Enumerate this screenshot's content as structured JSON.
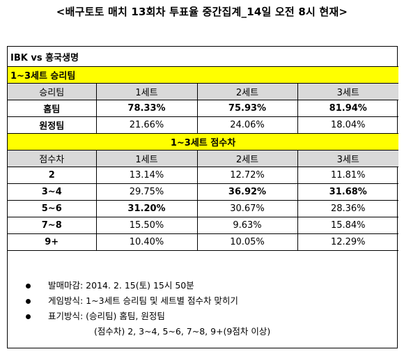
{
  "title": "<배구토토 매치 13회차 투표율 중간집계_14일 오전 8시 현재>",
  "matchup": "IBK vs  흥국생명",
  "win_section": {
    "title": "1~3세트 승리팀",
    "headers": [
      "승리팀",
      "1세트",
      "2세트",
      "3세트"
    ],
    "rows": [
      {
        "label": "홈팀",
        "values": [
          "78.33%",
          "75.93%",
          "81.94%"
        ],
        "bold": [
          true,
          true,
          true
        ]
      },
      {
        "label": "원정팀",
        "values": [
          "21.66%",
          "24.06%",
          "18.04%"
        ],
        "bold": [
          false,
          false,
          false
        ]
      }
    ]
  },
  "diff_section": {
    "title": "1~3세트 점수차",
    "headers": [
      "점수차",
      "1세트",
      "2세트",
      "3세트"
    ],
    "rows": [
      {
        "label": "2",
        "values": [
          "13.14%",
          "12.72%",
          "11.81%"
        ],
        "bold": [
          false,
          false,
          false
        ]
      },
      {
        "label": "3~4",
        "values": [
          "29.75%",
          "36.92%",
          "31.68%"
        ],
        "bold": [
          false,
          true,
          true
        ]
      },
      {
        "label": "5~6",
        "values": [
          "31.20%",
          "30.67%",
          "28.36%"
        ],
        "bold": [
          true,
          false,
          false
        ]
      },
      {
        "label": "7~8",
        "values": [
          "15.50%",
          "9.63%",
          "15.84%"
        ],
        "bold": [
          false,
          false,
          false
        ]
      },
      {
        "label": "9+",
        "values": [
          "10.40%",
          "10.05%",
          "12.29%"
        ],
        "bold": [
          false,
          false,
          false
        ]
      }
    ]
  },
  "notes": [
    "발매마감: 2014. 2. 15(토) 15시 50분",
    "게임방식: 1~3세트 승리팀 및 세트별 점수차 맞히기",
    "표기방식: (승리팀) 홈팀, 원정팀"
  ],
  "notes_continuation": "(점수차) 2, 3~4, 5~6, 7~8, 9+(9점차 이상)"
}
